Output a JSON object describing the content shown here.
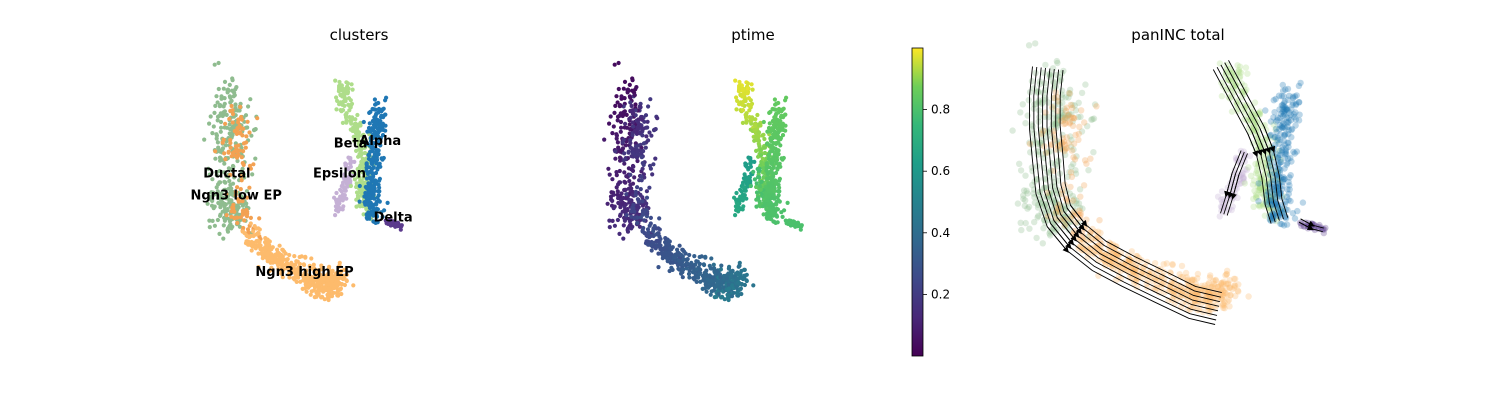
{
  "figure": {
    "panels": [
      {
        "key": "clusters",
        "title": "clusters"
      },
      {
        "key": "ptime",
        "title": "ptime"
      },
      {
        "key": "velocity",
        "title": "panINC total"
      }
    ]
  },
  "chart_data": [
    {
      "type": "scatter",
      "panel": "clusters",
      "title": "clusters",
      "xlabel": "",
      "ylabel": "",
      "axes": "off",
      "grid": false,
      "legend": "on data",
      "x_range": [
        -6.5,
        6.5
      ],
      "y_range": [
        -5.0,
        5.6
      ],
      "clusters": [
        {
          "name": "Ductal",
          "color": "#8fbc8f",
          "label_pos": [
            -4.5,
            1.3
          ],
          "shape": [
            [
              -4.5,
              4.8
            ],
            [
              -4.6,
              3.8
            ],
            [
              -4.6,
              2.8
            ],
            [
              -4.6,
              1.8
            ],
            [
              -4.6,
              0.8
            ],
            [
              -4.5,
              0.0
            ],
            [
              -4.2,
              -0.4
            ],
            [
              -3.7,
              2.8
            ],
            [
              -3.8,
              3.8
            ]
          ],
          "spread": 0.45,
          "n": 320
        },
        {
          "name": "Ngn3 low EP",
          "color": "#f3a152",
          "label_pos": [
            -4.0,
            0.5
          ],
          "shape": [
            [
              -4.0,
              3.5
            ],
            [
              -3.7,
              3.2
            ],
            [
              -4.3,
              2.5
            ],
            [
              -3.5,
              2.0
            ],
            [
              -4.0,
              0.3
            ],
            [
              -3.5,
              -0.2
            ],
            [
              -3.0,
              -0.8
            ]
          ],
          "spread": 0.35,
          "n": 110
        },
        {
          "name": "Ngn3 high EP",
          "color": "#fdbb6c",
          "label_pos": [
            -0.3,
            -2.3
          ],
          "shape": [
            [
              -3.2,
              -0.7
            ],
            [
              -2.7,
              -1.2
            ],
            [
              -2.0,
              -1.6
            ],
            [
              -1.2,
              -1.9
            ],
            [
              -0.3,
              -2.3
            ],
            [
              0.6,
              -2.6
            ],
            [
              1.2,
              -2.4
            ],
            [
              1.7,
              -2.4
            ],
            [
              0.5,
              -3.0
            ]
          ],
          "spread": 0.32,
          "n": 420
        },
        {
          "name": "Epsilon",
          "color": "#c5b0d5",
          "label_pos": [
            1.6,
            1.3
          ],
          "shape": [
            [
              2.2,
              2.0
            ],
            [
              2.0,
              1.3
            ],
            [
              1.7,
              0.6
            ],
            [
              1.5,
              0.1
            ]
          ],
          "spread": 0.18,
          "n": 70
        },
        {
          "name": "Beta",
          "color": "#aedd8a",
          "label_pos": [
            2.2,
            2.4
          ],
          "shape": [
            [
              1.6,
              4.7
            ],
            [
              1.9,
              4.0
            ],
            [
              2.3,
              3.3
            ],
            [
              2.7,
              2.6
            ],
            [
              2.9,
              1.9
            ],
            [
              3.0,
              1.2
            ],
            [
              3.0,
              0.6
            ],
            [
              3.1,
              0.1
            ],
            [
              2.6,
              1.6
            ]
          ],
          "spread": 0.24,
          "n": 280
        },
        {
          "name": "Alpha",
          "color": "#1f77b4",
          "label_pos": [
            3.8,
            2.5
          ],
          "shape": [
            [
              3.8,
              3.9
            ],
            [
              3.6,
              3.3
            ],
            [
              3.5,
              2.6
            ],
            [
              3.5,
              1.8
            ],
            [
              3.4,
              1.0
            ],
            [
              3.3,
              0.4
            ],
            [
              3.4,
              -0.2
            ]
          ],
          "spread": 0.24,
          "n": 260
        },
        {
          "name": "Delta",
          "color": "#5b3a8c",
          "label_pos": [
            4.5,
            -0.3
          ],
          "shape": [
            [
              4.2,
              -0.3
            ],
            [
              4.6,
              -0.4
            ],
            [
              4.9,
              -0.5
            ]
          ],
          "spread": 0.1,
          "n": 30
        }
      ]
    },
    {
      "type": "scatter",
      "panel": "ptime",
      "title": "ptime",
      "xlabel": "",
      "ylabel": "",
      "axes": "off",
      "grid": false,
      "colormap": "viridis",
      "colorbar": {
        "range": [
          0.0,
          1.0
        ],
        "ticks": [
          "0.2",
          "0.4",
          "0.6",
          "0.8"
        ],
        "tick_values": [
          0.2,
          0.4,
          0.6,
          0.8
        ]
      },
      "x_range": [
        -6.5,
        6.5
      ],
      "y_range": [
        -5.0,
        5.6
      ]
    },
    {
      "type": "scatter",
      "panel": "panINC total",
      "title": "panINC total",
      "xlabel": "",
      "ylabel": "",
      "axes": "off",
      "grid": false,
      "overlay": "velocity streamlines",
      "point_alpha": 0.3,
      "x_range": [
        -6.5,
        6.5
      ],
      "y_range": [
        -5.0,
        5.6
      ]
    }
  ]
}
